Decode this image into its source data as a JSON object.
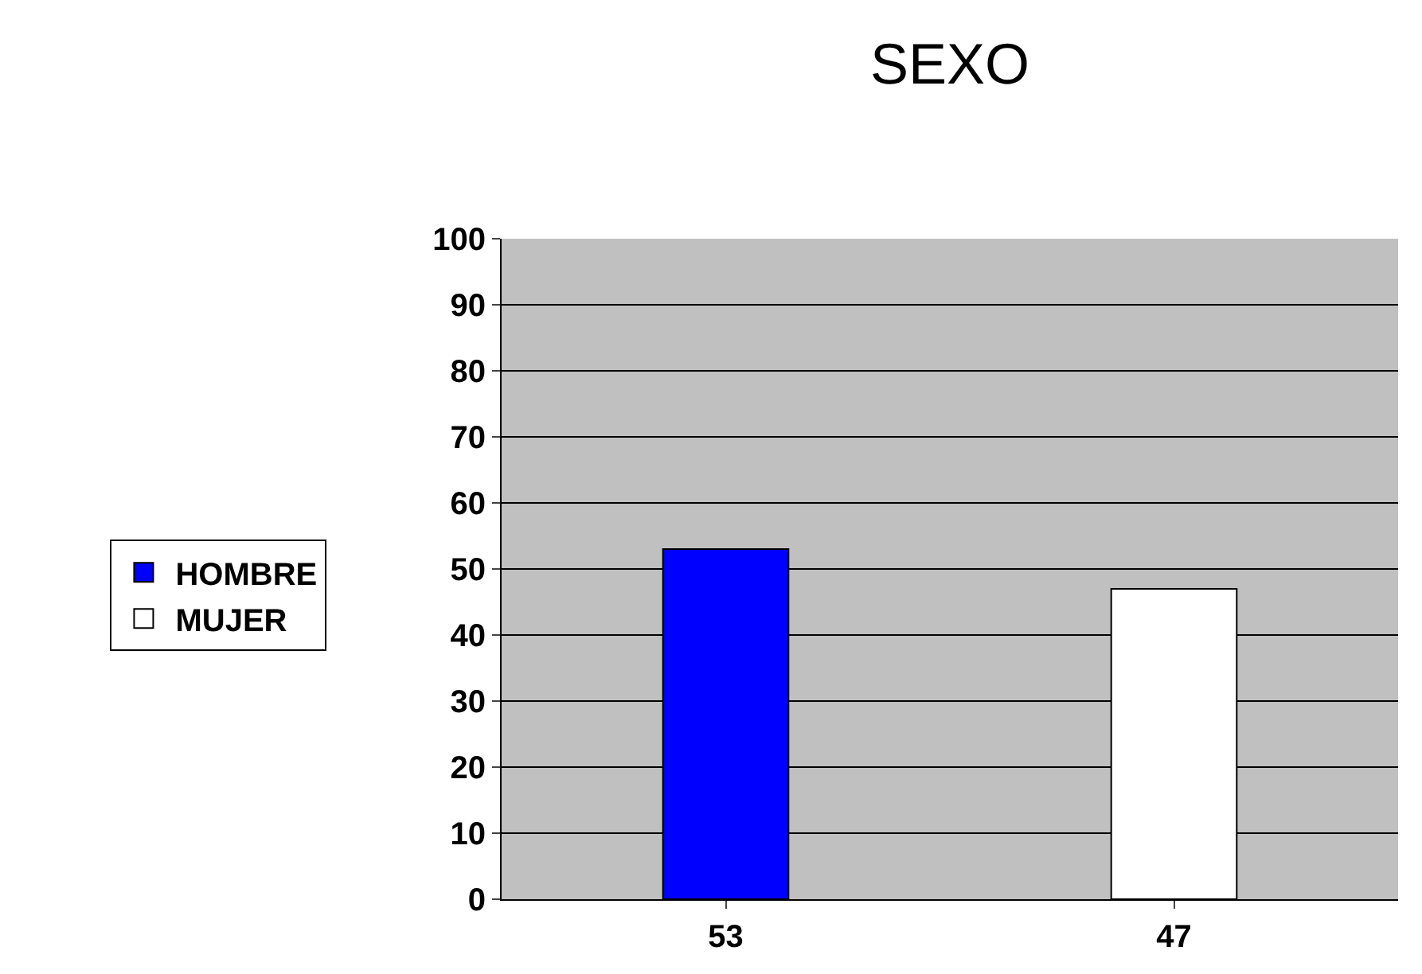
{
  "chart_data": {
    "type": "bar",
    "title": "SEXO",
    "categories": [
      "53",
      "47"
    ],
    "series": [
      {
        "name": "HOMBRE",
        "color": "#0000ff",
        "values": [
          53,
          null
        ]
      },
      {
        "name": "MUJER",
        "color": "#ffffff",
        "values": [
          null,
          47
        ]
      }
    ],
    "ylim": [
      0,
      100
    ],
    "yticks": [
      0,
      10,
      20,
      30,
      40,
      50,
      60,
      70,
      80,
      90,
      100
    ],
    "grid": "y",
    "legend": "left"
  }
}
